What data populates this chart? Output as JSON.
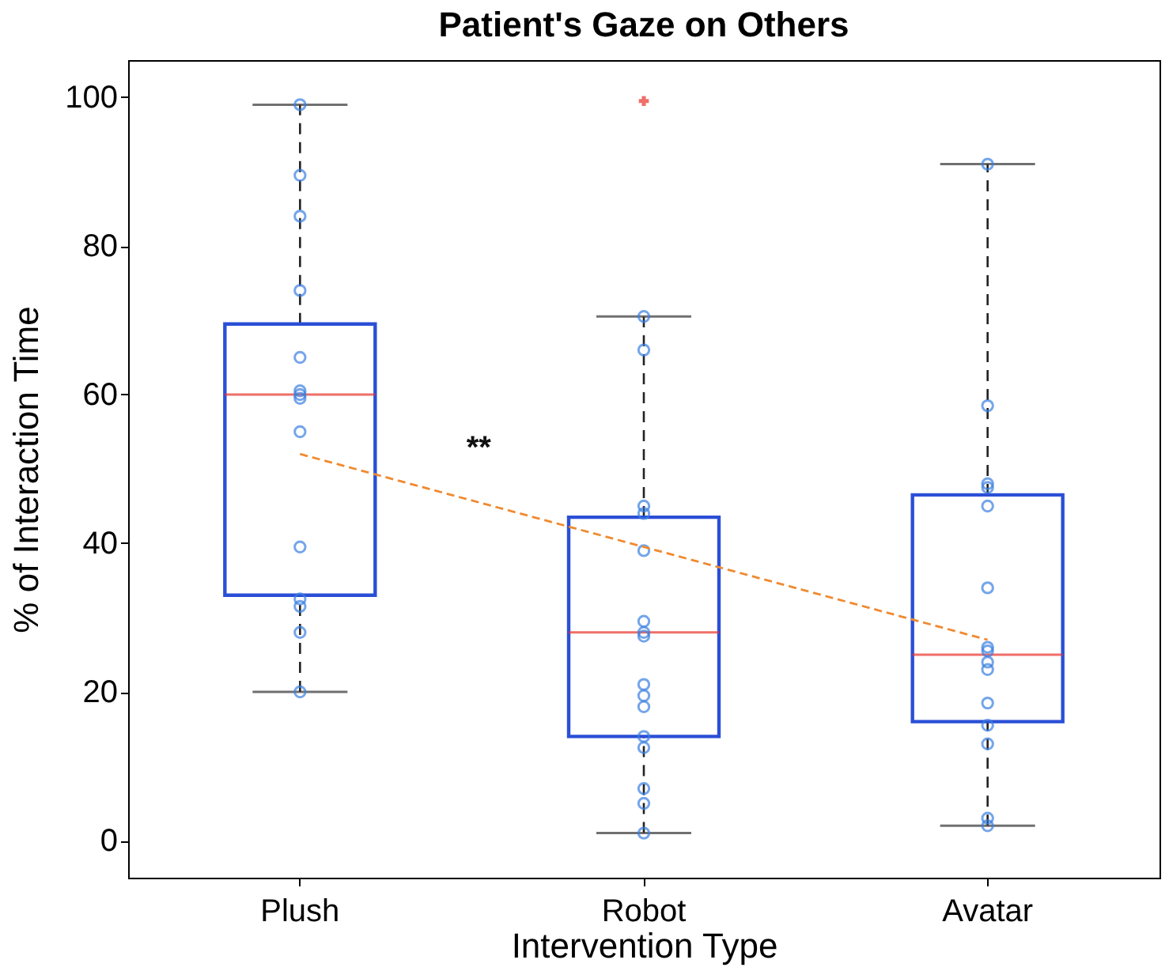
{
  "chart_data": {
    "type": "box",
    "title": "Patient's Gaze on Others",
    "xlabel": "Intervention Type",
    "ylabel": "% of Interaction Time",
    "categories": [
      "Plush",
      "Robot",
      "Avatar"
    ],
    "ylim": [
      -5,
      105
    ],
    "yticks": [
      0,
      20,
      40,
      60,
      80,
      100
    ],
    "grid": false,
    "boxes": [
      {
        "low": 20,
        "q1": 33,
        "median": 60,
        "q3": 69.5,
        "high": 99
      },
      {
        "low": 1,
        "q1": 14,
        "median": 28,
        "q3": 43.5,
        "high": 70.5,
        "outliers": [
          99.5
        ]
      },
      {
        "low": 2,
        "q1": 16,
        "median": 25,
        "q3": 46.5,
        "high": 91
      }
    ],
    "series": [
      {
        "type": "scatter",
        "color": "#3a7fe0",
        "marker": "circle",
        "x": [
          "Plush",
          "Plush",
          "Plush",
          "Plush",
          "Plush",
          "Plush",
          "Plush",
          "Plush",
          "Plush",
          "Plush",
          "Plush",
          "Plush",
          "Plush",
          "Plush",
          "Robot",
          "Robot",
          "Robot",
          "Robot",
          "Robot",
          "Robot",
          "Robot",
          "Robot",
          "Robot",
          "Robot",
          "Robot",
          "Robot",
          "Robot",
          "Robot",
          "Robot",
          "Robot",
          "Avatar",
          "Avatar",
          "Avatar",
          "Avatar",
          "Avatar",
          "Avatar",
          "Avatar",
          "Avatar",
          "Avatar",
          "Avatar",
          "Avatar",
          "Avatar",
          "Avatar",
          "Avatar",
          "Avatar"
        ],
        "values": [
          99,
          89.5,
          84,
          74,
          65,
          60.5,
          60,
          59.5,
          55,
          39.5,
          32.5,
          31.5,
          28,
          20,
          70.5,
          66,
          45,
          44,
          39,
          29.5,
          28,
          27.5,
          21,
          19.5,
          18,
          14,
          12.5,
          7,
          5,
          1,
          91,
          58.5,
          48,
          47.5,
          45,
          34,
          26,
          25.5,
          24,
          23,
          18.5,
          15.5,
          13,
          3,
          2
        ]
      },
      {
        "type": "line",
        "color": "#f08a30",
        "line_style": "dashed",
        "x": [
          "Plush",
          "Robot",
          "Avatar"
        ],
        "values": [
          52,
          39.5,
          27
        ]
      }
    ],
    "annotations": [
      "**"
    ]
  }
}
